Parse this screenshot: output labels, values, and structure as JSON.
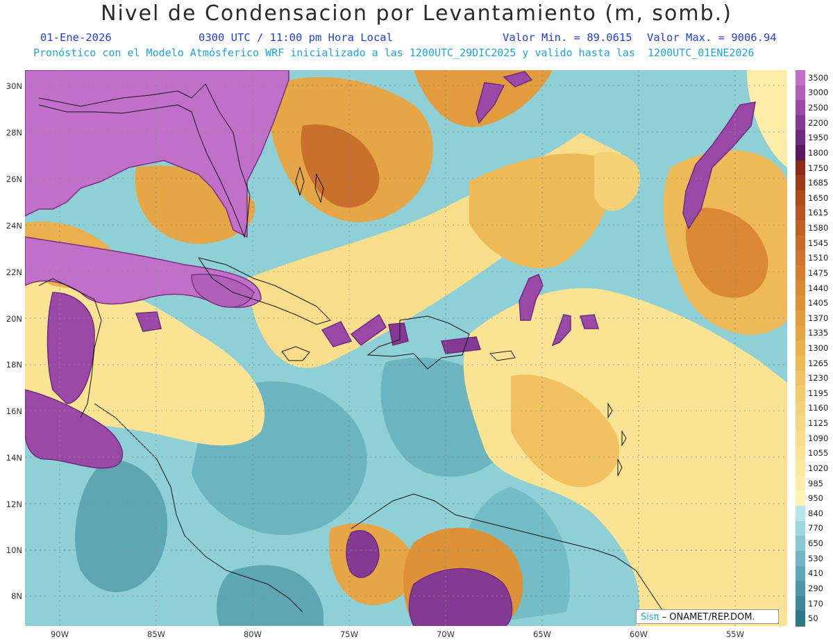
{
  "header": {
    "title": "Nivel de Condensacion por Levantamiento (m, somb.)",
    "date": "01-Ene-2026",
    "time": "0300 UTC / 11:00 pm Hora Local",
    "value_min": "Valor Min. = 89.0615",
    "value_max": "Valor Max. = 9006.94",
    "subtitle": "Pronóstico con el Modelo Atmósferico WRF inicializado a las 1200UTC_29DIC2025 y valido hasta las  1200UTC_01ENE2026"
  },
  "axes": {
    "lat_labels": [
      "30N",
      "28N",
      "26N",
      "24N",
      "22N",
      "20N",
      "18N",
      "16N",
      "14N",
      "12N",
      "10N",
      "8N"
    ],
    "lon_labels": [
      "90W",
      "85W",
      "80W",
      "75W",
      "70W",
      "65W",
      "60W",
      "55W"
    ]
  },
  "colorbar": {
    "labels": [
      "3500",
      "3000",
      "2500",
      "2200",
      "1950",
      "1800",
      "1750",
      "1685",
      "1650",
      "1615",
      "1580",
      "1545",
      "1510",
      "1475",
      "1440",
      "1405",
      "1370",
      "1335",
      "1300",
      "1265",
      "1230",
      "1195",
      "1160",
      "1125",
      "1090",
      "1055",
      "1020",
      "985",
      "950",
      "840",
      "770",
      "650",
      "530",
      "410",
      "290",
      "170",
      "50"
    ],
    "colors": [
      "#c070c8",
      "#b060b8",
      "#9a4aa6",
      "#843a92",
      "#6e2a7e",
      "#5a1a5e",
      "#8a2a1a",
      "#9e3a1a",
      "#ae4a1a",
      "#b85420",
      "#c06024",
      "#c86a28",
      "#ce742c",
      "#d47e30",
      "#da8834",
      "#de9238",
      "#e29c3e",
      "#e6a646",
      "#eab04e",
      "#eeba58",
      "#f0c262",
      "#f2ca6c",
      "#f4d276",
      "#f6d880",
      "#f8de8a",
      "#fae494",
      "#fce99e",
      "#fdeda8",
      "#fef2b2",
      "#b6e6ea",
      "#9cd8de",
      "#86c8d0",
      "#72b8c2",
      "#5ea8b4",
      "#4c98a6",
      "#3a8898",
      "#2a788a"
    ]
  },
  "credit": {
    "brand": "Sisπ",
    "org": " – ONAMET/REP.DOM."
  }
}
